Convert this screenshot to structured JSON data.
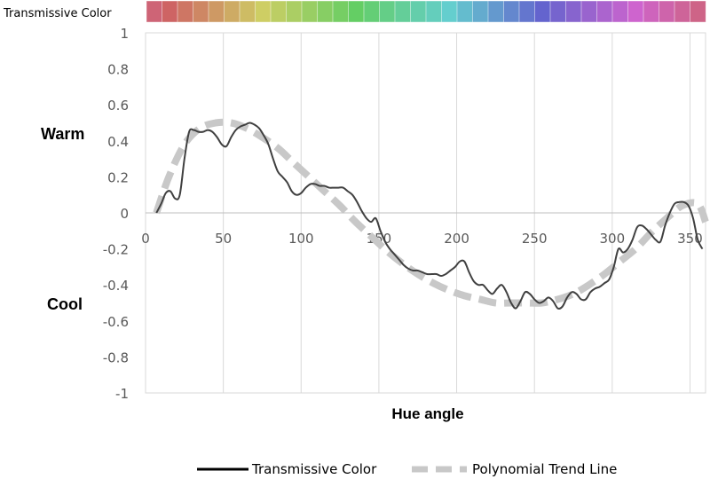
{
  "strip": {
    "label": "Transmissive Color"
  },
  "side_labels": {
    "warm": "Warm",
    "cool": "Cool"
  },
  "chart_data": {
    "type": "line",
    "title": "",
    "xlabel": "Hue angle",
    "ylabel": "",
    "xlim": [
      0,
      360
    ],
    "ylim": [
      -1,
      1
    ],
    "x_ticks": [
      0,
      50,
      100,
      150,
      200,
      250,
      300,
      350
    ],
    "x_tick_labels": [
      "0",
      "50",
      "100",
      "150",
      "200",
      "250",
      "300",
      "350"
    ],
    "y_ticks": [
      1,
      0.8,
      0.6,
      0.4,
      0.2,
      0,
      -0.2,
      -0.4,
      -0.6,
      -0.8,
      -1
    ],
    "y_tick_labels": [
      "1",
      "0.8",
      "0.6",
      "0.4",
      "0.2",
      "0",
      "-0.2",
      "-0.4",
      "-0.6",
      "-0.8",
      "-1"
    ],
    "grid": "vertical",
    "legend_position": "bottom",
    "series": [
      {
        "name": "Transmissive Color",
        "color": "#404040",
        "style": "solid",
        "x": [
          7,
          10,
          13,
          16,
          19,
          22,
          25,
          28,
          31,
          34,
          37,
          40,
          43,
          46,
          49,
          52,
          55,
          58,
          61,
          64,
          67,
          70,
          73,
          76,
          79,
          82,
          85,
          88,
          91,
          94,
          97,
          100,
          103,
          106,
          109,
          112,
          115,
          118,
          121,
          124,
          127,
          130,
          133,
          136,
          139,
          142,
          145,
          148,
          151,
          154,
          157,
          160,
          163,
          166,
          169,
          172,
          175,
          178,
          181,
          184,
          187,
          190,
          193,
          196,
          199,
          202,
          205,
          208,
          211,
          214,
          217,
          220,
          223,
          226,
          229,
          232,
          235,
          238,
          241,
          244,
          247,
          250,
          253,
          256,
          259,
          262,
          265,
          268,
          271,
          274,
          277,
          280,
          283,
          286,
          289,
          292,
          295,
          298,
          301,
          304,
          307,
          310,
          313,
          316,
          319,
          322,
          325,
          328,
          331,
          334,
          337,
          340,
          343,
          346,
          349,
          352,
          355,
          358
        ],
        "y": [
          0.0,
          0.05,
          0.11,
          0.12,
          0.08,
          0.1,
          0.3,
          0.45,
          0.46,
          0.45,
          0.45,
          0.46,
          0.45,
          0.42,
          0.38,
          0.37,
          0.42,
          0.46,
          0.48,
          0.49,
          0.5,
          0.49,
          0.47,
          0.43,
          0.38,
          0.3,
          0.23,
          0.2,
          0.17,
          0.12,
          0.1,
          0.11,
          0.14,
          0.16,
          0.16,
          0.15,
          0.15,
          0.14,
          0.14,
          0.14,
          0.14,
          0.12,
          0.1,
          0.06,
          0.01,
          -0.03,
          -0.05,
          -0.03,
          -0.1,
          -0.16,
          -0.2,
          -0.23,
          -0.26,
          -0.29,
          -0.31,
          -0.32,
          -0.32,
          -0.33,
          -0.34,
          -0.34,
          -0.34,
          -0.35,
          -0.34,
          -0.32,
          -0.3,
          -0.27,
          -0.27,
          -0.33,
          -0.38,
          -0.4,
          -0.4,
          -0.43,
          -0.45,
          -0.42,
          -0.4,
          -0.44,
          -0.5,
          -0.53,
          -0.49,
          -0.44,
          -0.45,
          -0.48,
          -0.5,
          -0.49,
          -0.47,
          -0.49,
          -0.53,
          -0.52,
          -0.47,
          -0.44,
          -0.45,
          -0.48,
          -0.48,
          -0.44,
          -0.42,
          -0.41,
          -0.39,
          -0.37,
          -0.3,
          -0.2,
          -0.22,
          -0.2,
          -0.15,
          -0.08,
          -0.07,
          -0.09,
          -0.12,
          -0.15,
          -0.16,
          -0.07,
          0.0,
          0.05,
          0.06,
          0.06,
          0.04,
          -0.03,
          -0.15,
          -0.2
        ]
      },
      {
        "name": "Polynomial Trend Line",
        "color": "#c8c8c8",
        "style": "dashed",
        "x": [
          7,
          15,
          25,
          35,
          45,
          55,
          65,
          75,
          85,
          95,
          105,
          115,
          125,
          135,
          145,
          155,
          165,
          175,
          185,
          195,
          205,
          215,
          225,
          235,
          245,
          255,
          265,
          275,
          285,
          295,
          305,
          315,
          325,
          335,
          345,
          355,
          360
        ],
        "y": [
          0.0,
          0.2,
          0.38,
          0.47,
          0.5,
          0.5,
          0.47,
          0.42,
          0.36,
          0.28,
          0.2,
          0.12,
          0.04,
          -0.05,
          -0.13,
          -0.21,
          -0.28,
          -0.34,
          -0.39,
          -0.43,
          -0.46,
          -0.48,
          -0.5,
          -0.5,
          -0.5,
          -0.5,
          -0.48,
          -0.45,
          -0.4,
          -0.34,
          -0.27,
          -0.2,
          -0.11,
          -0.03,
          0.04,
          0.05,
          -0.05
        ]
      }
    ]
  }
}
